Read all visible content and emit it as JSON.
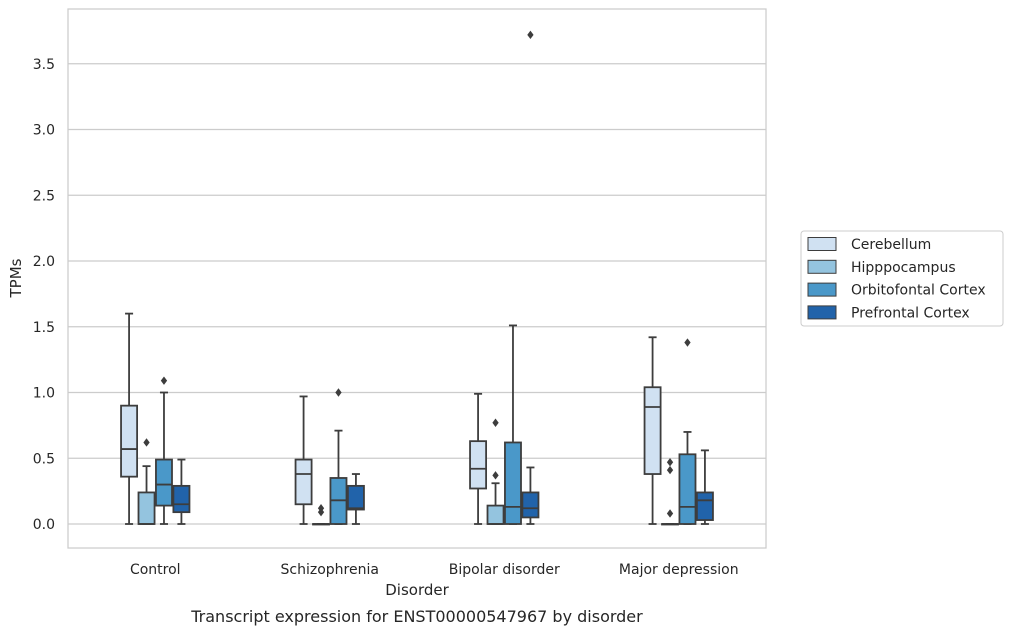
{
  "chart_data": {
    "type": "box",
    "caption": "Transcript expression for ENST00000547967 by disorder",
    "xlabel": "Disorder",
    "ylabel": "TPMs",
    "ylim": [
      -0.18,
      3.9
    ],
    "yticks": [
      "0.0",
      "0.5",
      "1.0",
      "1.5",
      "2.0",
      "2.5",
      "3.0",
      "3.5"
    ],
    "ytick_values": [
      0,
      0.5,
      1.0,
      1.5,
      2.0,
      2.5,
      3.0,
      3.5
    ],
    "grid": true,
    "legend_position": "right",
    "categories": [
      "Control",
      "Schizophrenia",
      "Bipolar disorder",
      "Major depression"
    ],
    "series": [
      {
        "name": "Cerebellum",
        "color": "#d0e1f2",
        "boxes": [
          {
            "min": 0.0,
            "q1": 0.36,
            "median": 0.57,
            "q3": 0.9,
            "max": 1.6,
            "outliers": []
          },
          {
            "min": 0.0,
            "q1": 0.15,
            "median": 0.38,
            "q3": 0.49,
            "max": 0.97,
            "outliers": []
          },
          {
            "min": 0.0,
            "q1": 0.27,
            "median": 0.42,
            "q3": 0.63,
            "max": 0.99,
            "outliers": []
          },
          {
            "min": 0.0,
            "q1": 0.38,
            "median": 0.89,
            "q3": 1.04,
            "max": 1.42,
            "outliers": []
          }
        ]
      },
      {
        "name": "Hipppocampus",
        "color": "#94c4df",
        "boxes": [
          {
            "min": 0.0,
            "q1": 0.0,
            "median": 0.0,
            "q3": 0.24,
            "max": 0.44,
            "outliers": [
              0.62
            ]
          },
          {
            "min": 0.0,
            "q1": 0.0,
            "median": 0.0,
            "q3": 0.0,
            "max": 0.0,
            "outliers": [
              0.09,
              0.12
            ]
          },
          {
            "min": 0.0,
            "q1": 0.0,
            "median": 0.0,
            "q3": 0.14,
            "max": 0.31,
            "outliers": [
              0.37,
              0.77
            ]
          },
          {
            "min": 0.0,
            "q1": 0.0,
            "median": 0.0,
            "q3": 0.0,
            "max": 0.0,
            "outliers": [
              0.08,
              0.41,
              0.47
            ]
          }
        ]
      },
      {
        "name": "Orbitofontal Cortex",
        "color": "#4a98c9",
        "boxes": [
          {
            "min": 0.0,
            "q1": 0.14,
            "median": 0.3,
            "q3": 0.49,
            "max": 1.0,
            "outliers": [
              1.09
            ]
          },
          {
            "min": 0.0,
            "q1": 0.0,
            "median": 0.18,
            "q3": 0.35,
            "max": 0.71,
            "outliers": [
              1.0
            ]
          },
          {
            "min": 0.0,
            "q1": 0.0,
            "median": 0.13,
            "q3": 0.62,
            "max": 1.51,
            "outliers": []
          },
          {
            "min": 0.0,
            "q1": 0.0,
            "median": 0.13,
            "q3": 0.53,
            "max": 0.7,
            "outliers": [
              1.38
            ]
          }
        ]
      },
      {
        "name": "Prefrontal Cortex",
        "color": "#2163aa",
        "boxes": [
          {
            "min": 0.0,
            "q1": 0.09,
            "median": 0.15,
            "q3": 0.29,
            "max": 0.49,
            "outliers": []
          },
          {
            "min": 0.0,
            "q1": 0.11,
            "median": 0.12,
            "q3": 0.29,
            "max": 0.38,
            "outliers": []
          },
          {
            "min": 0.0,
            "q1": 0.05,
            "median": 0.12,
            "q3": 0.24,
            "max": 0.43,
            "outliers": [
              3.72
            ]
          },
          {
            "min": 0.0,
            "q1": 0.03,
            "median": 0.18,
            "q3": 0.24,
            "max": 0.56,
            "outliers": []
          }
        ]
      }
    ]
  }
}
